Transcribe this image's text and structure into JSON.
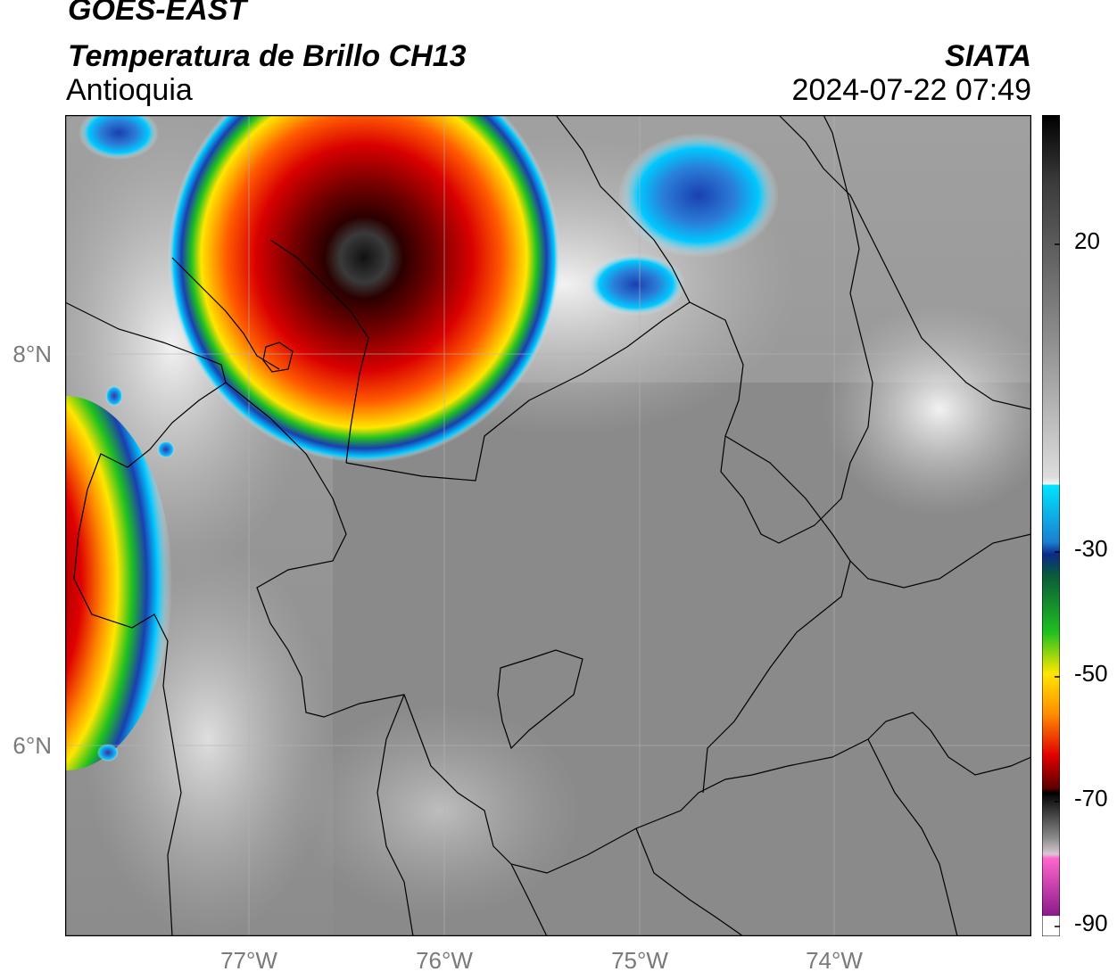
{
  "header": {
    "satellite": "GOES-EAST",
    "product": "Temperatura de Brillo CH13",
    "region": "Antioquia",
    "organization": "SIATA",
    "datetime": "2024-07-22 07:49"
  },
  "map": {
    "latitude_labels": [
      "8°N",
      "6°N"
    ],
    "longitude_labels": [
      "77°W",
      "76°W",
      "75°W",
      "74°W"
    ],
    "background_color": "#8a8a8a",
    "boundary_color": "#000000"
  },
  "colorbar": {
    "tick_labels": [
      "20",
      "-30",
      "-50",
      "-70",
      "-90"
    ],
    "colors": {
      "warm_gray": "#888888",
      "white": "#f5f5f5",
      "cyan": "#00e5ff",
      "blue": "#1a3fb0",
      "green": "#1fc11f",
      "yellow": "#ffe600",
      "orange": "#ff8c00",
      "red": "#d90000",
      "dark_red": "#5a0000",
      "black": "#000000",
      "pink": "#ff66cc",
      "purple": "#8a1a8a"
    }
  }
}
